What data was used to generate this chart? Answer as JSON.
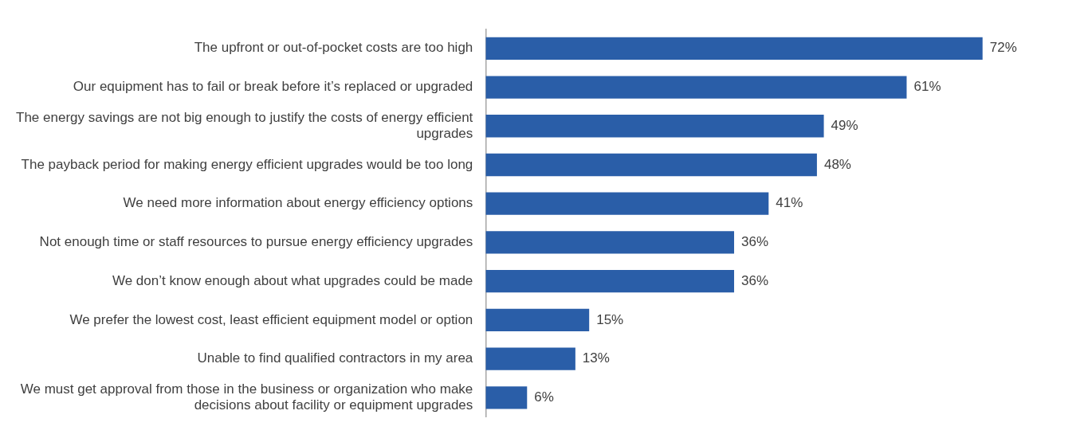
{
  "chart_data": {
    "type": "bar",
    "orientation": "horizontal",
    "categories": [
      "The upfront or out-of-pocket costs are too high",
      "Our equipment has to fail or break before it’s replaced or upgraded",
      "The energy savings are not big enough to justify the costs of energy efficient upgrades",
      "The payback period for making energy efficient upgrades would be too long",
      "We need more information about energy efficiency options",
      "Not enough time or staff resources to pursue energy efficiency upgrades",
      "We don’t know enough about what upgrades could be made",
      "We prefer the lowest cost, least efficient equipment model or option",
      "Unable to find qualified contractors in my area",
      "We must get approval from those in the business or organization who make decisions about facility or equipment upgrades"
    ],
    "values": [
      72,
      61,
      49,
      48,
      41,
      36,
      36,
      15,
      13,
      6
    ],
    "value_labels": [
      "72%",
      "61%",
      "49%",
      "48%",
      "41%",
      "36%",
      "36%",
      "15%",
      "13%",
      "6%"
    ],
    "color": "#2a5ea8",
    "grid": false,
    "legend": false
  }
}
